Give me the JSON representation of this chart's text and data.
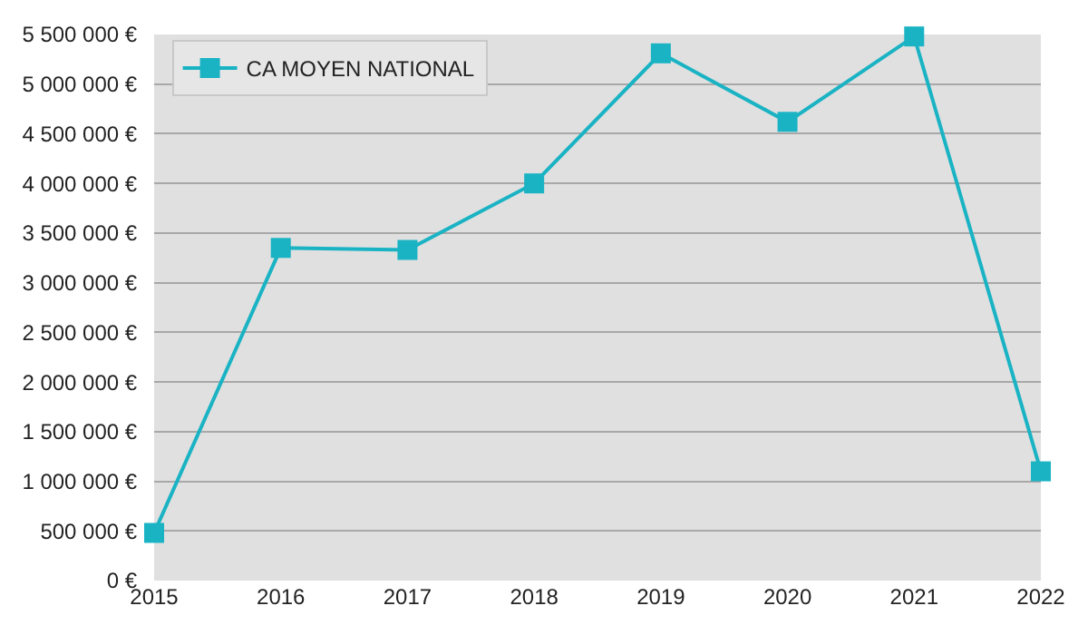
{
  "chart_data": {
    "type": "line",
    "x": [
      2015,
      2016,
      2017,
      2018,
      2019,
      2020,
      2021,
      2022
    ],
    "series": [
      {
        "name": "CA MOYEN NATIONAL",
        "color": "#1ab3c4",
        "values": [
          480000,
          3350000,
          3330000,
          4000000,
          5310000,
          4620000,
          5480000,
          1100000
        ]
      }
    ],
    "xlim": [
      2015,
      2022
    ],
    "xticks": [
      2015,
      2016,
      2017,
      2018,
      2019,
      2020,
      2021,
      2022
    ],
    "ylim": [
      0,
      5500000
    ],
    "yticks": [
      {
        "value": 0,
        "label": "0 €"
      },
      {
        "value": 500000,
        "label": "500 000 €"
      },
      {
        "value": 1000000,
        "label": "1 000 000 €"
      },
      {
        "value": 1500000,
        "label": "1 500 000 €"
      },
      {
        "value": 2000000,
        "label": "2 000 000 €"
      },
      {
        "value": 2500000,
        "label": "2 500 000 €"
      },
      {
        "value": 3000000,
        "label": "3 000 000 €"
      },
      {
        "value": 3500000,
        "label": "3 500 000 €"
      },
      {
        "value": 4000000,
        "label": "4 000 000 €"
      },
      {
        "value": 4500000,
        "label": "4 500 000 €"
      },
      {
        "value": 5000000,
        "label": "5 000 000 €"
      },
      {
        "value": 5500000,
        "label": "5 500 000 €"
      }
    ],
    "grid": "y",
    "legend": "top left",
    "marker": "square",
    "line_style": "solid"
  }
}
